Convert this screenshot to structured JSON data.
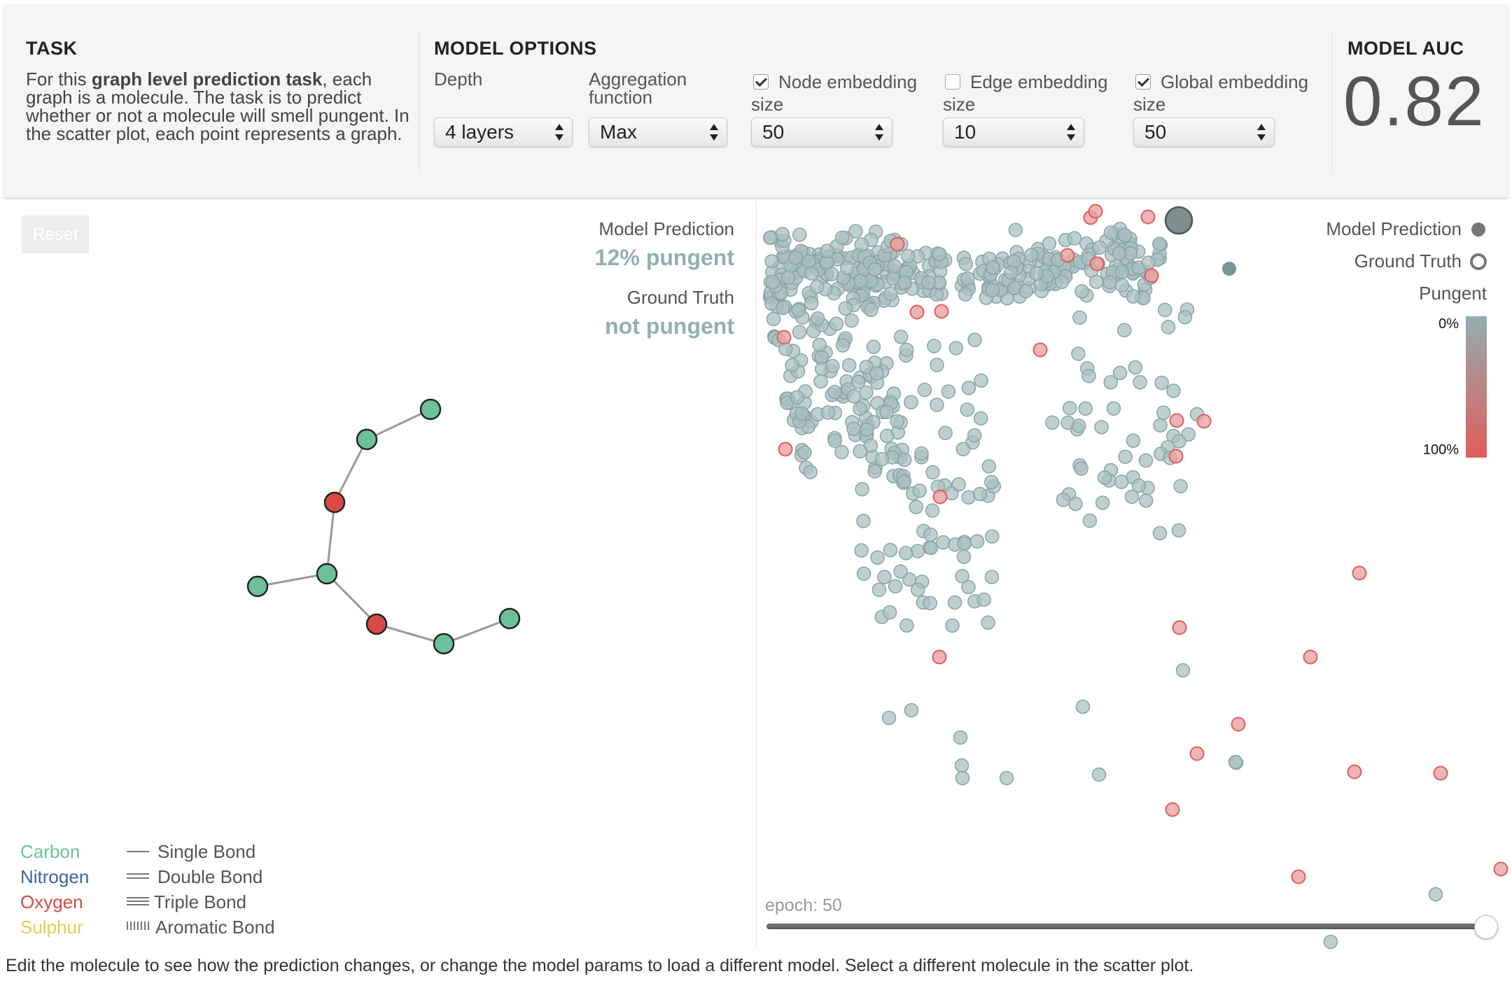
{
  "task": {
    "title": "TASK",
    "desc_pre": "For this ",
    "desc_bold": "graph level prediction task",
    "desc_post": ", each graph is a molecule. The task is to predict whether or not a molecule will smell pungent. In the scatter plot, each point represents a graph."
  },
  "model_options": {
    "title": "MODEL OPTIONS",
    "depth": {
      "label": "Depth",
      "value": "4 layers"
    },
    "aggregation": {
      "label": "Aggregation function",
      "value": "Max"
    },
    "node_embedding": {
      "label": "Node embedding",
      "sub": "size",
      "checked": true,
      "value": "50"
    },
    "edge_embedding": {
      "label": "Edge embedding",
      "sub": "size",
      "checked": false,
      "value": "10"
    },
    "global_embedding": {
      "label": "Global embedding",
      "sub": "size",
      "checked": true,
      "value": "50"
    }
  },
  "model_auc": {
    "title": "MODEL AUC",
    "value": "0.82"
  },
  "reset_label": "Reset",
  "prediction": {
    "model_label": "Model Prediction",
    "model_value": "12% pungent",
    "truth_label": "Ground Truth",
    "truth_value": "not pungent"
  },
  "element_legend": [
    {
      "name": "Carbon",
      "color": "#6cc19c"
    },
    {
      "name": "Nitrogen",
      "color": "#3a64a4"
    },
    {
      "name": "Oxygen",
      "color": "#d94a45"
    },
    {
      "name": "Sulphur",
      "color": "#e5cf4d"
    }
  ],
  "bond_legend": [
    "Single Bond",
    "Double Bond",
    "Triple Bond",
    "Aromatic Bond"
  ],
  "scatter_legend": {
    "prediction": "Model Prediction",
    "truth": "Ground Truth",
    "colorbar_title": "Pungent",
    "colorbar_min": "0%",
    "colorbar_max": "100%",
    "color_low": "#93aeb0",
    "color_high": "#e05d5b"
  },
  "epoch_label": "epoch: 50",
  "footer": "Edit the molecule to see how the prediction changes, or change the model params to load a different model. Select a different molecule in the scatter plot.",
  "colors": {
    "carbon": "#6cc19c",
    "oxygen": "#d94a45",
    "bond": "#999999",
    "point": "#93aeb0",
    "point_red": "#e8787a"
  }
}
